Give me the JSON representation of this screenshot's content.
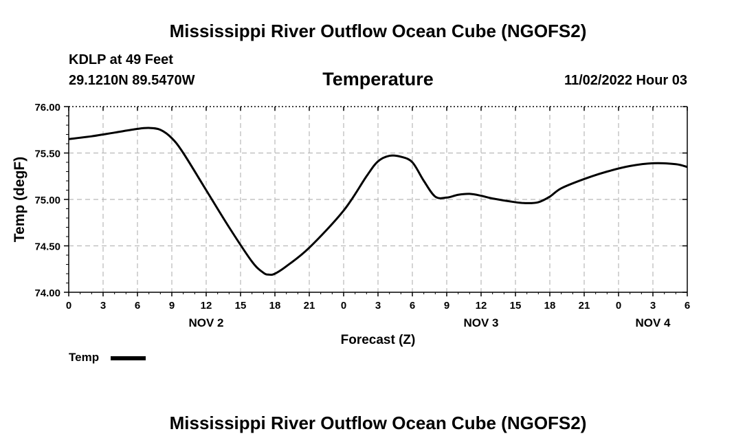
{
  "header": {
    "main_title": "Mississippi River Outflow Ocean Cube (NGOFS2)",
    "station": "KDLP at 49 Feet",
    "coordinates": "29.1210N  89.5470W",
    "panel_title": "Temperature",
    "datetime": "11/02/2022 Hour 03"
  },
  "footer": {
    "main_title": "Mississippi River Outflow Ocean Cube (NGOFS2)"
  },
  "legend": {
    "label": "Temp"
  },
  "chart_data": {
    "type": "line",
    "title": "Temperature",
    "xlabel": "Forecast (Z)",
    "ylabel": "Temp (degF)",
    "ylim": [
      74.0,
      76.0
    ],
    "xlim": [
      0,
      54
    ],
    "y_ticks": [
      "74.00",
      "74.50",
      "75.00",
      "75.50",
      "76.00"
    ],
    "x_ticks": [
      "0",
      "3",
      "6",
      "9",
      "12",
      "15",
      "18",
      "21",
      "0",
      "3",
      "6",
      "9",
      "12",
      "15",
      "18",
      "21",
      "0",
      "3",
      "6"
    ],
    "day_labels": [
      {
        "label": "NOV 2",
        "hour": 12
      },
      {
        "label": "NOV 3",
        "hour": 36
      },
      {
        "label": "NOV 4",
        "hour": 51
      }
    ],
    "grid": true,
    "series": [
      {
        "name": "Temp",
        "color": "#000000",
        "x": [
          0,
          2,
          4,
          6,
          7,
          8,
          9,
          10,
          12,
          14,
          16,
          17,
          17.5,
          18,
          19,
          21,
          24,
          26,
          27,
          28,
          29,
          30,
          31,
          32,
          33,
          34,
          35,
          36,
          37,
          39,
          40,
          41,
          42,
          43,
          45,
          47,
          49,
          51,
          53,
          54
        ],
        "values": [
          75.65,
          75.68,
          75.72,
          75.76,
          75.77,
          75.75,
          75.66,
          75.5,
          75.1,
          74.7,
          74.33,
          74.21,
          74.19,
          74.2,
          74.28,
          74.48,
          74.88,
          75.25,
          75.41,
          75.47,
          75.46,
          75.4,
          75.2,
          75.03,
          75.02,
          75.05,
          75.06,
          75.04,
          75.01,
          74.97,
          74.96,
          74.97,
          75.03,
          75.12,
          75.22,
          75.3,
          75.36,
          75.39,
          75.38,
          75.35
        ]
      }
    ]
  }
}
